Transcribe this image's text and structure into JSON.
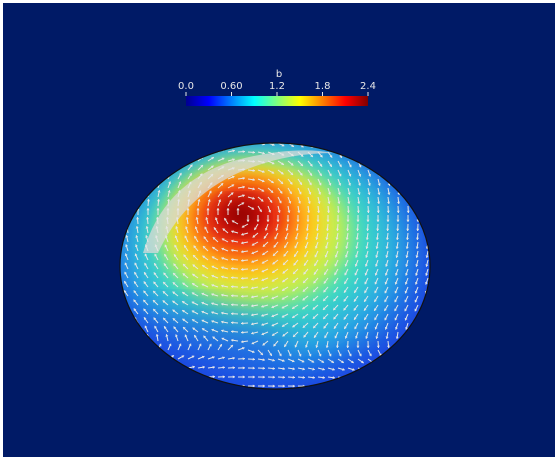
{
  "viewport": {
    "background": "#001a66"
  },
  "colorbar": {
    "title": "b",
    "range": [
      0.0,
      2.4
    ],
    "tick_labels": [
      "0.0",
      "0.60",
      "1.2",
      "1.8",
      "2.4"
    ],
    "colormap": "jet"
  },
  "colors": {
    "outline": "#111111",
    "vector": "#e6e6e6"
  }
}
